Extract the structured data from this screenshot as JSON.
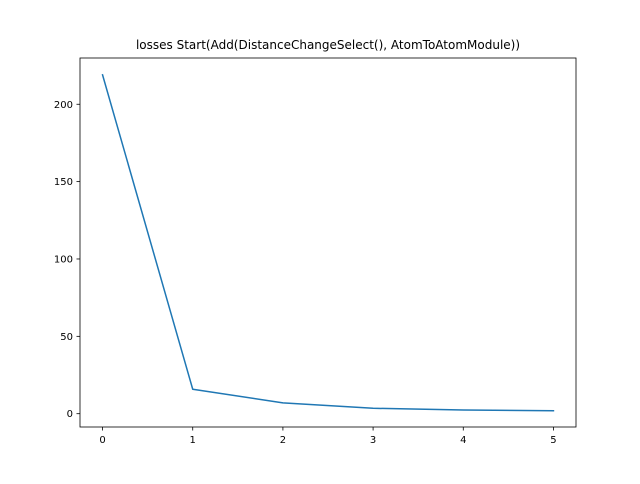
{
  "chart_data": {
    "type": "line",
    "title": "losses Start(Add(DistanceChangeSelect(), AtomToAtomModule))",
    "xlabel": "",
    "ylabel": "",
    "x": [
      0,
      1,
      2,
      3,
      4,
      5
    ],
    "series": [
      {
        "values": [
          219.0,
          15.8,
          7.0,
          3.5,
          2.4,
          1.9
        ],
        "color": "#1f77b4"
      }
    ],
    "xticks": [
      0,
      1,
      2,
      3,
      4,
      5
    ],
    "xtick_labels": [
      "0",
      "1",
      "2",
      "3",
      "4",
      "5"
    ],
    "yticks": [
      0,
      50,
      100,
      150,
      200
    ],
    "ytick_labels": [
      "0",
      "50",
      "100",
      "150",
      "200"
    ],
    "xlim": [
      -0.25,
      5.25
    ],
    "ylim": [
      -8.6,
      229.9
    ],
    "grid": false,
    "legend": "none"
  }
}
